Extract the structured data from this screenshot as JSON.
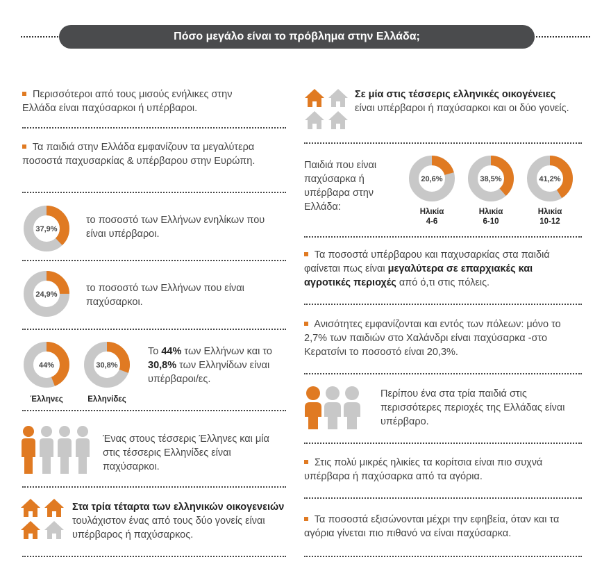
{
  "header": {
    "title": "Πόσο μεγάλο είναι το πρόβλημα στην Ελλάδα;"
  },
  "colors": {
    "accent": "#e07a22",
    "track": "#c8c8c8",
    "header_bg": "#4a4b4d"
  },
  "left": {
    "fact1": "Περισσότεροι από τους μισούς ενήλικες στην Ελλάδα είναι παχύσαρκοι ή υπέρβαροι.",
    "fact2": "Τα παιδιά στην Ελλάδα εμφανίζουν τα μεγαλύτερα ποσοστά παχυσαρκίας & υπέρβαρου στην Ευρώπη.",
    "d1": {
      "label": "37,9%",
      "value": 0.379,
      "text": "το ποσοστό των Ελλήνων ενηλίκων που είναι υπέρβαροι."
    },
    "d2": {
      "label": "24,9%",
      "value": 0.249,
      "text": "το ποσοστό των Ελλήνων που είναι παχύσαρκοι."
    },
    "men": {
      "label": "44%",
      "value": 0.44,
      "caption": "Έλληνες"
    },
    "women": {
      "label": "30,8%",
      "value": 0.308,
      "caption": "Ελληνίδες"
    },
    "gender_text": {
      "a": "Το ",
      "b": "44%",
      "c": " των Ελλήνων και το ",
      "d": "30,8%",
      "e": " των Ελληνίδων είναι υπέρβαροι/ες."
    },
    "people_text": "Ένας στους τέσσερις Έλληνες και μία στις τέσσερις Ελληνίδες είναι παχύσαρκοι.",
    "families": {
      "bold": "Στα τρία τέταρτα των ελληνικών οικογενειών",
      "rest": "τουλάχιστον ένας από τους δύο γονείς είναι υπέρβαρος ή παχύσαρκος."
    }
  },
  "right": {
    "families": {
      "bold": "Σε μία στις τέσσερις ελληνικές οικογένειες",
      "rest": "είναι υπέρβαροι ή παχύσαρκοι και οι δύο γονείς."
    },
    "kids_title": "Παιδιά που είναι παχύσαρκα ή υπέρβαρα στην Ελλάδα:",
    "kids": [
      {
        "label": "20,6%",
        "value": 0.206,
        "age_title": "Ηλικία",
        "age": "4-6"
      },
      {
        "label": "38,5%",
        "value": 0.385,
        "age_title": "Ηλικία",
        "age": "6-10"
      },
      {
        "label": "41,2%",
        "value": 0.412,
        "age_title": "Ηλικία",
        "age": "10-12"
      }
    ],
    "regions": {
      "a": "Τα ποσοστά υπέρβαρου και παχυσαρκίας στα παιδιά φαίνεται πως είναι ",
      "b": "μεγαλύτερα σε επαρχιακές και αγροτικές περιοχές",
      "c": " από ό,τι στις πόλεις."
    },
    "inequality": "Ανισότητες εμφανίζονται και εντός των πόλεων: μόνο το 2,7% των παιδιών στο Χαλάνδρι είναι παχύσαρκα -στο Κερατσίνι το ποσοστό είναι 20,3%.",
    "one_in_three": "Περίπου ένα στα τρία παιδιά στις περισσότερες περιοχές της Ελλάδας είναι υπέρβαρο.",
    "girls": "Στις πολύ μικρές ηλικίες τα κορίτσια είναι πιο συχνά υπέρβαρα ή παχύσαρκα από τα αγόρια.",
    "teens": "Τα ποσοστά εξισώνονται μέχρι την εφηβεία, όταν και τα αγόρια γίνεται πιο πιθανό να είναι παχύσαρκα."
  }
}
